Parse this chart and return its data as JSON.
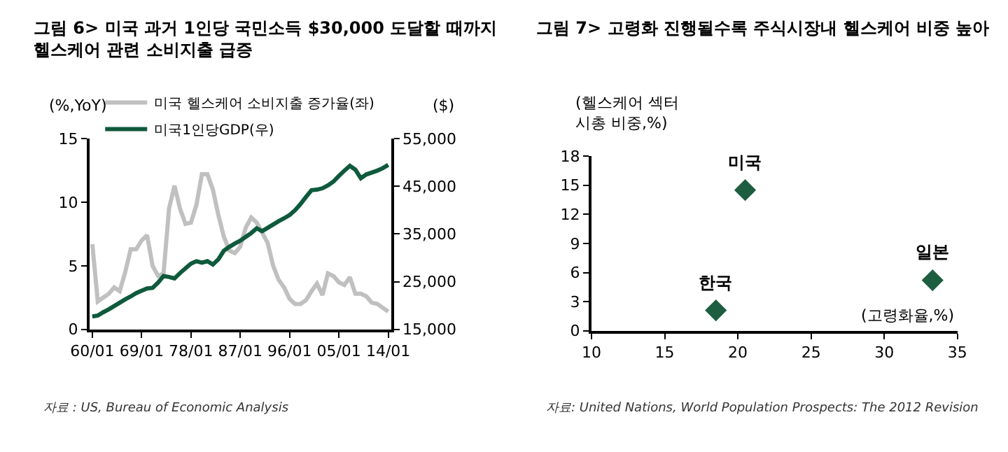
{
  "chart_data": [
    {
      "type": "line",
      "title": "그림 6> 미국 과거 1인당 국민소득 $30,000 도달할 때까지\n헬스케어 관련 소비지출 급증",
      "ylabel": "(%,YoY)",
      "y2label": "($)",
      "categories": [
        "60/01",
        null,
        null,
        null,
        null,
        null,
        null,
        null,
        null,
        "69/01",
        null,
        null,
        null,
        null,
        null,
        null,
        null,
        null,
        "78/01",
        null,
        null,
        null,
        null,
        null,
        null,
        null,
        null,
        "87/01",
        null,
        null,
        null,
        null,
        null,
        null,
        null,
        null,
        "96/01",
        null,
        null,
        null,
        null,
        null,
        null,
        null,
        null,
        "05/01",
        null,
        null,
        null,
        null,
        null,
        null,
        null,
        null,
        "14/01"
      ],
      "series": [
        {
          "name": "미국 헬스케어 소비지출 증가율(좌)",
          "color": "#c0c0c0",
          "values": [
            6.7,
            2.2,
            2.5,
            2.8,
            3.3,
            3.0,
            4.5,
            6.3,
            6.3,
            7.0,
            7.4,
            5.0,
            4.2,
            4.4,
            9.5,
            11.3,
            9.5,
            8.3,
            8.4,
            9.8,
            12.2,
            12.2,
            11.0,
            9.0,
            7.3,
            6.2,
            6.0,
            6.5,
            8.0,
            8.8,
            8.4,
            7.6,
            6.8,
            5.0,
            3.9,
            3.3,
            2.4,
            2.0,
            2.0,
            2.3,
            3.0,
            3.6,
            2.7,
            4.4,
            4.2,
            3.7,
            3.5,
            4.1,
            2.8,
            2.8,
            2.6,
            2.1,
            2.0,
            1.7,
            1.4
          ]
        },
        {
          "name": "미국1인당GDP(우)",
          "color": "#0f5a3c",
          "axis": "y2",
          "values": [
            17700,
            17900,
            18600,
            19200,
            19900,
            20600,
            21300,
            21900,
            22600,
            23100,
            23600,
            23700,
            24800,
            26200,
            26000,
            25700,
            26800,
            27800,
            28800,
            29300,
            29000,
            29300,
            28600,
            29700,
            31500,
            32300,
            33000,
            33600,
            34400,
            35200,
            36200,
            35600,
            36300,
            37000,
            37700,
            38300,
            39000,
            40000,
            41300,
            42800,
            44200,
            44300,
            44600,
            45200,
            46000,
            47200,
            48300,
            49300,
            48500,
            46700,
            47500,
            47900,
            48300,
            48800,
            49500
          ]
        }
      ],
      "ylim": [
        0,
        15
      ],
      "yticks": [
        0,
        5,
        10,
        15
      ],
      "y2lim": [
        15000,
        55000
      ],
      "y2ticks": [
        {
          "value": 15000,
          "label": "15,000"
        },
        {
          "value": 25000,
          "label": "25,000"
        },
        {
          "value": 35000,
          "label": "35,000"
        },
        {
          "value": 45000,
          "label": "45,000"
        },
        {
          "value": 55000,
          "label": "55,000"
        }
      ],
      "legend": "top",
      "annotations": [
        "자료 : US, Bureau of Economic Analysis"
      ]
    },
    {
      "type": "scatter",
      "title": "그림 7> 고령화 진행될수록 주식시장내 헬스케어 비중 높아",
      "ylabel": "(헬스케어 섹터\n시총 비중,%)",
      "xlabel": "(고령화율,%)",
      "x": [
        18.5,
        20.5,
        33.3
      ],
      "values": [
        2.1,
        14.5,
        5.2
      ],
      "color": "#1e5e40",
      "marker": "diamond",
      "xlim": [
        10,
        35
      ],
      "xticks": [
        10,
        15,
        20,
        25,
        30,
        35
      ],
      "ylim": [
        0,
        18
      ],
      "yticks": [
        0,
        3,
        6,
        9,
        12,
        15,
        18
      ],
      "legend": false,
      "annotations": [
        {
          "text": "한국",
          "x": 18.5,
          "y": 2.1
        },
        {
          "text": "미국",
          "x": 20.5,
          "y": 14.5
        },
        {
          "text": "일본",
          "x": 33.3,
          "y": 5.2
        },
        "자료: United Nations, World Population Prospects: The 2012 Revision"
      ]
    }
  ]
}
